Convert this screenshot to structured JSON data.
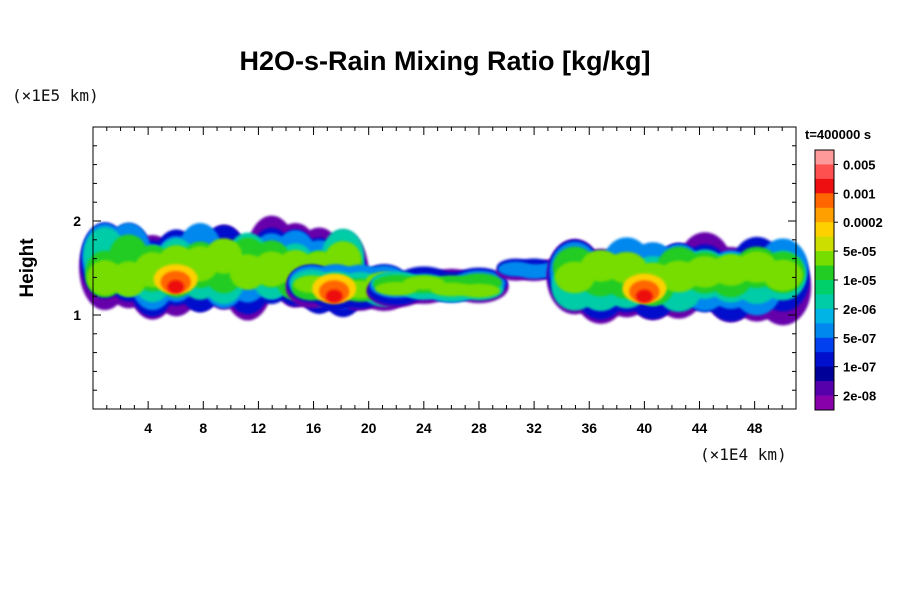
{
  "chart_data": {
    "type": "heatmap",
    "title": "H2O-s-Rain Mixing Ratio [kg/kg]",
    "ylabel": "Height",
    "y_unit": "(×1E5 km)",
    "x_unit": "(×1E4 km)",
    "time_label": "t=400000 s",
    "xlim": [
      0,
      51
    ],
    "ylim": [
      0,
      3
    ],
    "x_ticks": [
      4,
      8,
      12,
      16,
      20,
      24,
      28,
      32,
      36,
      40,
      44,
      48
    ],
    "y_ticks": [
      1,
      2
    ],
    "colorbar": {
      "labels": [
        "0.005",
        "0.001",
        "0.0002",
        "5e-05",
        "1e-05",
        "2e-06",
        "5e-07",
        "1e-07",
        "2e-08"
      ],
      "colors": [
        "#ff9a9a",
        "#ff5050",
        "#ee1010",
        "#ff6600",
        "#ffa000",
        "#ffd000",
        "#ccdd00",
        "#77dd00",
        "#22cc22",
        "#00d06a",
        "#00cca8",
        "#00b4e6",
        "#0088ee",
        "#0040ee",
        "#0010cc",
        "#000099",
        "#5500aa",
        "#8800aa"
      ]
    },
    "regions": [
      {
        "x": [
          0,
          19
        ],
        "y": [
          1.1,
          2.0
        ],
        "peak": "red",
        "peak_x": 6,
        "peak_y": 1.3
      },
      {
        "x": [
          15,
          22
        ],
        "y": [
          1.1,
          1.55
        ],
        "peak": "red",
        "peak_x": 17.5,
        "peak_y": 1.2
      },
      {
        "x": [
          21,
          29
        ],
        "y": [
          1.15,
          1.5
        ],
        "peak": "green"
      },
      {
        "x": [
          30,
          34
        ],
        "y": [
          1.4,
          1.6
        ],
        "peak": "blue"
      },
      {
        "x": [
          34,
          51
        ],
        "y": [
          1.05,
          1.85
        ],
        "peak": "red",
        "peak_x": 40,
        "peak_y": 1.2
      }
    ]
  }
}
